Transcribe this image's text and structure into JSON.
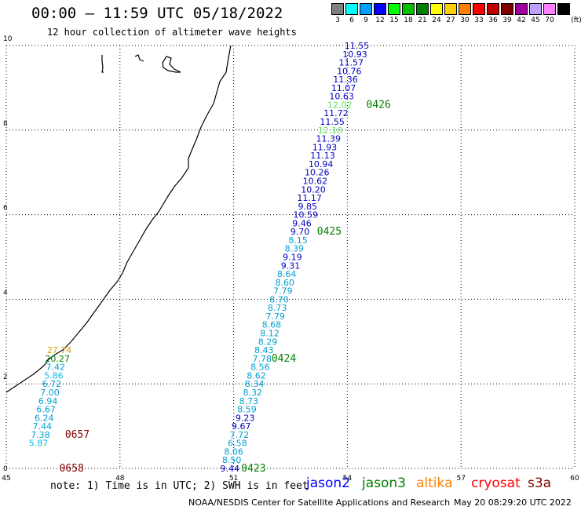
{
  "header": {
    "title": "00:00 – 11:59 UTC 05/18/2022",
    "subtitle": "12 hour collection of altimeter wave heights"
  },
  "legend": {
    "unit": "(ft)",
    "bins": [
      {
        "label": "3",
        "color": "#808080"
      },
      {
        "label": "6",
        "color": "#00ffff"
      },
      {
        "label": "9",
        "color": "#00a0ff"
      },
      {
        "label": "12",
        "color": "#0000ff"
      },
      {
        "label": "15",
        "color": "#00ff00"
      },
      {
        "label": "18",
        "color": "#00c000"
      },
      {
        "label": "21",
        "color": "#008000"
      },
      {
        "label": "24",
        "color": "#ffff00"
      },
      {
        "label": "27",
        "color": "#ffd000"
      },
      {
        "label": "30",
        "color": "#ff8000"
      },
      {
        "label": "33",
        "color": "#ff0000"
      },
      {
        "label": "36",
        "color": "#c00000"
      },
      {
        "label": "39",
        "color": "#800000"
      },
      {
        "label": "42",
        "color": "#a000a0"
      },
      {
        "label": "45",
        "color": "#c0a0ff"
      },
      {
        "label": "70",
        "color": "#ff80ff"
      },
      {
        "label": "",
        "color": "#000000"
      }
    ]
  },
  "axes": {
    "x_ticks": [
      "45",
      "48",
      "51",
      "54",
      "57",
      "60"
    ],
    "y_ticks": [
      "0",
      "2",
      "4",
      "6",
      "8",
      "10"
    ],
    "xlim": [
      45,
      60
    ],
    "ylim": [
      0,
      10
    ]
  },
  "tracks": [
    {
      "satellite": "jason2",
      "time_labels": [
        {
          "label": "0426",
          "lon": 54.5,
          "lat": 8.6
        },
        {
          "label": "0425",
          "lon": 53.2,
          "lat": 5.6
        },
        {
          "label": "0424",
          "lon": 52.0,
          "lat": 2.6
        },
        {
          "label": "0423",
          "lon": 51.2,
          "lat": 0.0
        }
      ],
      "points": [
        {
          "v": "11.55",
          "lon": 54.25,
          "lat": 10.0,
          "c": "#0000c0"
        },
        {
          "v": "10.93",
          "lon": 54.2,
          "lat": 9.8,
          "c": "#0000c0"
        },
        {
          "v": "11.57",
          "lon": 54.1,
          "lat": 9.6,
          "c": "#0000c0"
        },
        {
          "v": "10.76",
          "lon": 54.05,
          "lat": 9.4,
          "c": "#0000c0"
        },
        {
          "v": "11.36",
          "lon": 53.95,
          "lat": 9.2,
          "c": "#0000c0"
        },
        {
          "v": "11.07",
          "lon": 53.9,
          "lat": 9.0,
          "c": "#0000c0"
        },
        {
          "v": "10.63",
          "lon": 53.85,
          "lat": 8.8,
          "c": "#0000c0"
        },
        {
          "v": "12.02",
          "lon": 53.8,
          "lat": 8.6,
          "c": "#60e060"
        },
        {
          "v": "11.72",
          "lon": 53.7,
          "lat": 8.4,
          "c": "#0000c0"
        },
        {
          "v": "11.55",
          "lon": 53.6,
          "lat": 8.2,
          "c": "#0000c0"
        },
        {
          "v": "12.10",
          "lon": 53.55,
          "lat": 8.0,
          "c": "#60e060"
        },
        {
          "v": "11.39",
          "lon": 53.5,
          "lat": 7.8,
          "c": "#0000c0"
        },
        {
          "v": "11.93",
          "lon": 53.4,
          "lat": 7.6,
          "c": "#0000c0"
        },
        {
          "v": "11.13",
          "lon": 53.35,
          "lat": 7.4,
          "c": "#0000c0"
        },
        {
          "v": "10.94",
          "lon": 53.3,
          "lat": 7.2,
          "c": "#0000c0"
        },
        {
          "v": "10.26",
          "lon": 53.2,
          "lat": 7.0,
          "c": "#0000c0"
        },
        {
          "v": "10.62",
          "lon": 53.15,
          "lat": 6.8,
          "c": "#0000c0"
        },
        {
          "v": "10.20",
          "lon": 53.1,
          "lat": 6.6,
          "c": "#0000c0"
        },
        {
          "v": "11.17",
          "lon": 53.0,
          "lat": 6.4,
          "c": "#0000c0"
        },
        {
          "v": "9.85",
          "lon": 52.95,
          "lat": 6.2,
          "c": "#0000c0"
        },
        {
          "v": "10.59",
          "lon": 52.9,
          "lat": 6.0,
          "c": "#0000c0"
        },
        {
          "v": "9.46",
          "lon": 52.8,
          "lat": 5.8,
          "c": "#0000c0"
        },
        {
          "v": "9.70",
          "lon": 52.75,
          "lat": 5.6,
          "c": "#0000c0"
        },
        {
          "v": "8.15",
          "lon": 52.7,
          "lat": 5.4,
          "c": "#00a0d0"
        },
        {
          "v": "8.39",
          "lon": 52.6,
          "lat": 5.2,
          "c": "#00a0d0"
        },
        {
          "v": "9.19",
          "lon": 52.55,
          "lat": 5.0,
          "c": "#0000c0"
        },
        {
          "v": "9.31",
          "lon": 52.5,
          "lat": 4.8,
          "c": "#0000c0"
        },
        {
          "v": "8.64",
          "lon": 52.4,
          "lat": 4.6,
          "c": "#00a0d0"
        },
        {
          "v": "8.60",
          "lon": 52.35,
          "lat": 4.4,
          "c": "#00a0d0"
        },
        {
          "v": "7.79",
          "lon": 52.3,
          "lat": 4.2,
          "c": "#00a0d0"
        },
        {
          "v": "8.70",
          "lon": 52.2,
          "lat": 4.0,
          "c": "#00a0d0"
        },
        {
          "v": "8.73",
          "lon": 52.15,
          "lat": 3.8,
          "c": "#00a0d0"
        },
        {
          "v": "7.79",
          "lon": 52.1,
          "lat": 3.6,
          "c": "#00a0d0"
        },
        {
          "v": "8.68",
          "lon": 52.0,
          "lat": 3.4,
          "c": "#00a0d0"
        },
        {
          "v": "8.12",
          "lon": 51.95,
          "lat": 3.2,
          "c": "#00a0d0"
        },
        {
          "v": "8.29",
          "lon": 51.9,
          "lat": 3.0,
          "c": "#00a0d0"
        },
        {
          "v": "8.43",
          "lon": 51.8,
          "lat": 2.8,
          "c": "#00a0d0"
        },
        {
          "v": "7.78",
          "lon": 51.75,
          "lat": 2.6,
          "c": "#00a0d0"
        },
        {
          "v": "8.56",
          "lon": 51.7,
          "lat": 2.4,
          "c": "#00a0d0"
        },
        {
          "v": "8.62",
          "lon": 51.6,
          "lat": 2.2,
          "c": "#00a0d0"
        },
        {
          "v": "8.34",
          "lon": 51.55,
          "lat": 2.0,
          "c": "#00a0d0"
        },
        {
          "v": "8.32",
          "lon": 51.5,
          "lat": 1.8,
          "c": "#00a0d0"
        },
        {
          "v": "8.73",
          "lon": 51.4,
          "lat": 1.6,
          "c": "#00a0d0"
        },
        {
          "v": "8.59",
          "lon": 51.35,
          "lat": 1.4,
          "c": "#00a0d0"
        },
        {
          "v": "9.23",
          "lon": 51.3,
          "lat": 1.2,
          "c": "#0000c0"
        },
        {
          "v": "9.67",
          "lon": 51.2,
          "lat": 1.0,
          "c": "#0000c0"
        },
        {
          "v": "7.72",
          "lon": 51.15,
          "lat": 0.8,
          "c": "#00a0d0"
        },
        {
          "v": "6.58",
          "lon": 51.1,
          "lat": 0.6,
          "c": "#00a0d0"
        },
        {
          "v": "8.06",
          "lon": 51.0,
          "lat": 0.4,
          "c": "#00a0d0"
        },
        {
          "v": "8.50",
          "lon": 50.95,
          "lat": 0.2,
          "c": "#00a0d0"
        },
        {
          "v": "9.44",
          "lon": 50.9,
          "lat": 0.0,
          "c": "#0000c0"
        }
      ]
    },
    {
      "satellite": "jason3",
      "time_labels": [
        {
          "label": "0657",
          "lon": 46.55,
          "lat": 0.8
        },
        {
          "label": "0658",
          "lon": 46.4,
          "lat": 0.0
        }
      ],
      "points": [
        {
          "v": "27.74",
          "lon": 46.4,
          "lat": 2.8,
          "c": "#e0a000"
        },
        {
          "v": "20.27",
          "lon": 46.35,
          "lat": 2.6,
          "c": "#008000"
        },
        {
          "v": "7.42",
          "lon": 46.3,
          "lat": 2.4,
          "c": "#00a0d0"
        },
        {
          "v": "5.86",
          "lon": 46.25,
          "lat": 2.2,
          "c": "#00c0e0"
        },
        {
          "v": "6.72",
          "lon": 46.2,
          "lat": 2.0,
          "c": "#00a0d0"
        },
        {
          "v": "7.00",
          "lon": 46.15,
          "lat": 1.8,
          "c": "#00a0d0"
        },
        {
          "v": "6.94",
          "lon": 46.1,
          "lat": 1.6,
          "c": "#00a0d0"
        },
        {
          "v": "6.67",
          "lon": 46.05,
          "lat": 1.4,
          "c": "#00a0d0"
        },
        {
          "v": "6.24",
          "lon": 46.0,
          "lat": 1.2,
          "c": "#00a0d0"
        },
        {
          "v": "7.44",
          "lon": 45.95,
          "lat": 1.0,
          "c": "#00a0d0"
        },
        {
          "v": "7.38",
          "lon": 45.9,
          "lat": 0.8,
          "c": "#00a0d0"
        },
        {
          "v": "5.87",
          "lon": 45.85,
          "lat": 0.6,
          "c": "#00c0e0"
        }
      ]
    }
  ],
  "satellite_names": [
    {
      "name": "jason2",
      "color": "#0000ff"
    },
    {
      "name": "jason3",
      "color": "#008000"
    },
    {
      "name": "altika",
      "color": "#ff8000"
    },
    {
      "name": "cryosat",
      "color": "#ff0000"
    },
    {
      "name": "s3a",
      "color": "#800000"
    }
  ],
  "note": "note: 1) Time is in UTC; 2) SWH is in feet",
  "footer": {
    "credit": "NOAA/NESDIS Center for Satellite Applications and Research",
    "timestamp": "May 20 08:29:20 UTC 2022"
  }
}
